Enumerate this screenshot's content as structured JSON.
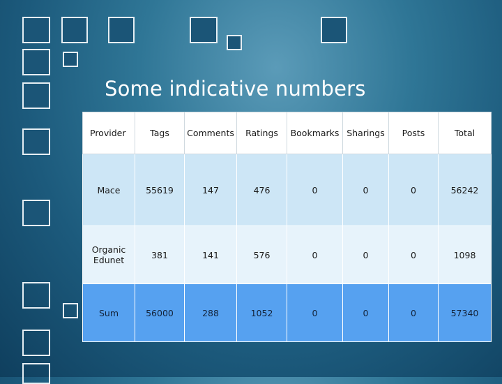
{
  "slide": {
    "title": "Some indicative numbers"
  },
  "table": {
    "headers": [
      "Provider",
      "Tags",
      "Comments",
      "Ratings",
      "Bookmarks",
      "Sharings",
      "Posts",
      "Total"
    ],
    "rows": [
      [
        "Mace",
        "55619",
        "147",
        "476",
        "0",
        "0",
        "0",
        "56242"
      ],
      [
        "Organic Edunet",
        "381",
        "141",
        "576",
        "0",
        "0",
        "0",
        "1098"
      ],
      [
        "Sum",
        "56000",
        "288",
        "1052",
        "0",
        "0",
        "0",
        "57340"
      ]
    ]
  },
  "colors": {
    "header_row": "#ffffff",
    "row_1": "#cde6f6",
    "row_2": "#e7f3fb",
    "sum_row": "#56a1f0",
    "background": "#2f7696"
  }
}
